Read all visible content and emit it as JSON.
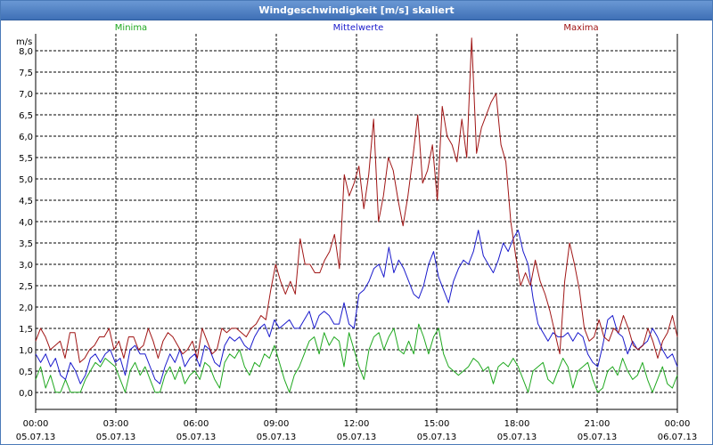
{
  "window": {
    "title": "Windgeschwindigkeit [m/s] skaliert"
  },
  "chart_data": {
    "type": "line",
    "title": "Windgeschwindigkeit [m/s] skaliert",
    "ylabel": "m/s",
    "ylim": [
      -0.4,
      8.4
    ],
    "xlim": [
      0,
      24
    ],
    "grid": true,
    "legend_placement": "top",
    "y_ticks": [
      "0,0",
      "0,5",
      "1,0",
      "1,5",
      "2,0",
      "2,5",
      "3,0",
      "3,5",
      "4,0",
      "4,5",
      "5,0",
      "5,5",
      "6,0",
      "6,5",
      "7,0",
      "7,5",
      "8,0"
    ],
    "x_ticks": [
      {
        "time": "00:00",
        "date": "05.07.13"
      },
      {
        "time": "03:00",
        "date": "05.07.13"
      },
      {
        "time": "06:00",
        "date": "05.07.13"
      },
      {
        "time": "09:00",
        "date": "05.07.13"
      },
      {
        "time": "12:00",
        "date": "05.07.13"
      },
      {
        "time": "15:00",
        "date": "05.07.13"
      },
      {
        "time": "18:00",
        "date": "05.07.13"
      },
      {
        "time": "21:00",
        "date": "05.07.13"
      },
      {
        "time": "00:00",
        "date": "06.07.13"
      }
    ],
    "series": [
      {
        "name": "Minima",
        "color": "#1fa81f",
        "values": [
          0.3,
          0.6,
          0.1,
          0.4,
          0.0,
          0.0,
          0.3,
          0.0,
          0.0,
          0.0,
          0.3,
          0.5,
          0.7,
          0.6,
          0.8,
          0.7,
          0.6,
          0.3,
          0.0,
          0.5,
          0.7,
          0.4,
          0.6,
          0.3,
          0.0,
          0.0,
          0.4,
          0.6,
          0.3,
          0.6,
          0.2,
          0.4,
          0.5,
          0.3,
          0.7,
          0.6,
          0.3,
          0.1,
          0.7,
          0.9,
          0.8,
          1.0,
          0.6,
          0.4,
          0.7,
          0.6,
          0.9,
          0.8,
          1.1,
          0.7,
          0.3,
          0.0,
          0.4,
          0.6,
          0.9,
          1.2,
          1.3,
          0.9,
          1.4,
          1.1,
          1.3,
          1.2,
          0.6,
          1.4,
          1.0,
          0.6,
          0.3,
          1.0,
          1.3,
          1.4,
          1.0,
          1.3,
          1.5,
          1.0,
          0.9,
          1.2,
          0.9,
          1.6,
          1.3,
          0.9,
          1.3,
          1.5,
          0.9,
          0.6,
          0.5,
          0.4,
          0.5,
          0.6,
          0.8,
          0.7,
          0.5,
          0.6,
          0.2,
          0.6,
          0.7,
          0.6,
          0.8,
          0.6,
          0.3,
          0.0,
          0.5,
          0.6,
          0.7,
          0.3,
          0.2,
          0.5,
          0.8,
          0.6,
          0.1,
          0.5,
          0.6,
          0.7,
          0.3,
          0.0,
          0.1,
          0.5,
          0.6,
          0.4,
          0.8,
          0.5,
          0.3,
          0.4,
          0.7,
          0.3,
          0.0,
          0.3,
          0.6,
          0.2,
          0.1,
          0.4
        ]
      },
      {
        "name": "Mittelwerte",
        "color": "#1a1acc",
        "values": [
          0.9,
          0.7,
          0.9,
          0.6,
          0.8,
          0.4,
          0.3,
          0.7,
          0.5,
          0.2,
          0.4,
          0.8,
          0.9,
          0.7,
          0.9,
          1.0,
          0.7,
          0.8,
          0.4,
          1.0,
          1.1,
          0.9,
          0.9,
          0.6,
          0.3,
          0.2,
          0.6,
          0.9,
          0.7,
          1.0,
          0.6,
          0.8,
          0.9,
          0.6,
          1.1,
          1.0,
          0.7,
          0.6,
          1.1,
          1.3,
          1.2,
          1.3,
          1.1,
          1.0,
          1.3,
          1.5,
          1.6,
          1.3,
          1.7,
          1.5,
          1.6,
          1.7,
          1.5,
          1.5,
          1.7,
          1.9,
          1.5,
          1.8,
          1.9,
          1.8,
          1.6,
          1.6,
          2.1,
          1.6,
          1.5,
          2.3,
          2.4,
          2.6,
          2.9,
          3.0,
          2.7,
          3.4,
          2.8,
          3.1,
          2.9,
          2.6,
          2.3,
          2.2,
          2.5,
          3.0,
          3.3,
          2.7,
          2.4,
          2.1,
          2.6,
          2.9,
          3.1,
          3.0,
          3.3,
          3.8,
          3.2,
          3.0,
          2.8,
          3.1,
          3.5,
          3.3,
          3.6,
          3.8,
          3.3,
          3.0,
          2.2,
          1.6,
          1.4,
          1.2,
          1.4,
          1.3,
          1.3,
          1.4,
          1.2,
          1.4,
          1.3,
          0.9,
          0.7,
          0.6,
          1.1,
          1.7,
          1.8,
          1.4,
          1.3,
          0.9,
          1.2,
          1.0,
          1.1,
          1.2,
          1.5,
          1.3,
          1.0,
          0.8,
          0.9,
          0.6
        ]
      },
      {
        "name": "Maxima",
        "color": "#a01515",
        "values": [
          1.2,
          1.5,
          1.3,
          1.0,
          1.1,
          1.2,
          0.8,
          1.4,
          1.4,
          0.7,
          0.8,
          1.0,
          1.1,
          1.3,
          1.3,
          1.5,
          1.0,
          1.2,
          0.8,
          1.3,
          1.3,
          1.0,
          1.1,
          1.5,
          1.2,
          0.8,
          1.2,
          1.4,
          1.3,
          1.1,
          0.9,
          1.0,
          1.2,
          0.8,
          1.5,
          1.2,
          0.9,
          1.0,
          1.5,
          1.4,
          1.5,
          1.5,
          1.4,
          1.3,
          1.5,
          1.6,
          1.8,
          1.7,
          2.4,
          3.0,
          2.6,
          2.3,
          2.6,
          2.3,
          3.6,
          3.0,
          3.0,
          2.8,
          2.8,
          3.1,
          3.3,
          3.7,
          2.9,
          5.1,
          4.6,
          4.9,
          5.3,
          4.3,
          5.1,
          6.4,
          4.0,
          4.6,
          5.5,
          5.2,
          4.5,
          3.9,
          4.6,
          5.5,
          6.5,
          4.9,
          5.2,
          5.8,
          4.5,
          6.7,
          6.0,
          5.8,
          5.4,
          6.4,
          5.5,
          8.3,
          5.6,
          6.2,
          6.5,
          6.8,
          7.0,
          5.8,
          5.4,
          4.0,
          3.2,
          2.5,
          2.8,
          2.5,
          3.1,
          2.6,
          2.3,
          1.9,
          1.4,
          0.9,
          2.6,
          3.5,
          3.0,
          2.4,
          1.5,
          1.2,
          1.3,
          1.7,
          1.3,
          1.2,
          1.5,
          1.4,
          1.8,
          1.5,
          1.1,
          1.0,
          1.1,
          1.5,
          1.2,
          0.8,
          1.2,
          1.4,
          1.8,
          1.3
        ]
      }
    ]
  }
}
